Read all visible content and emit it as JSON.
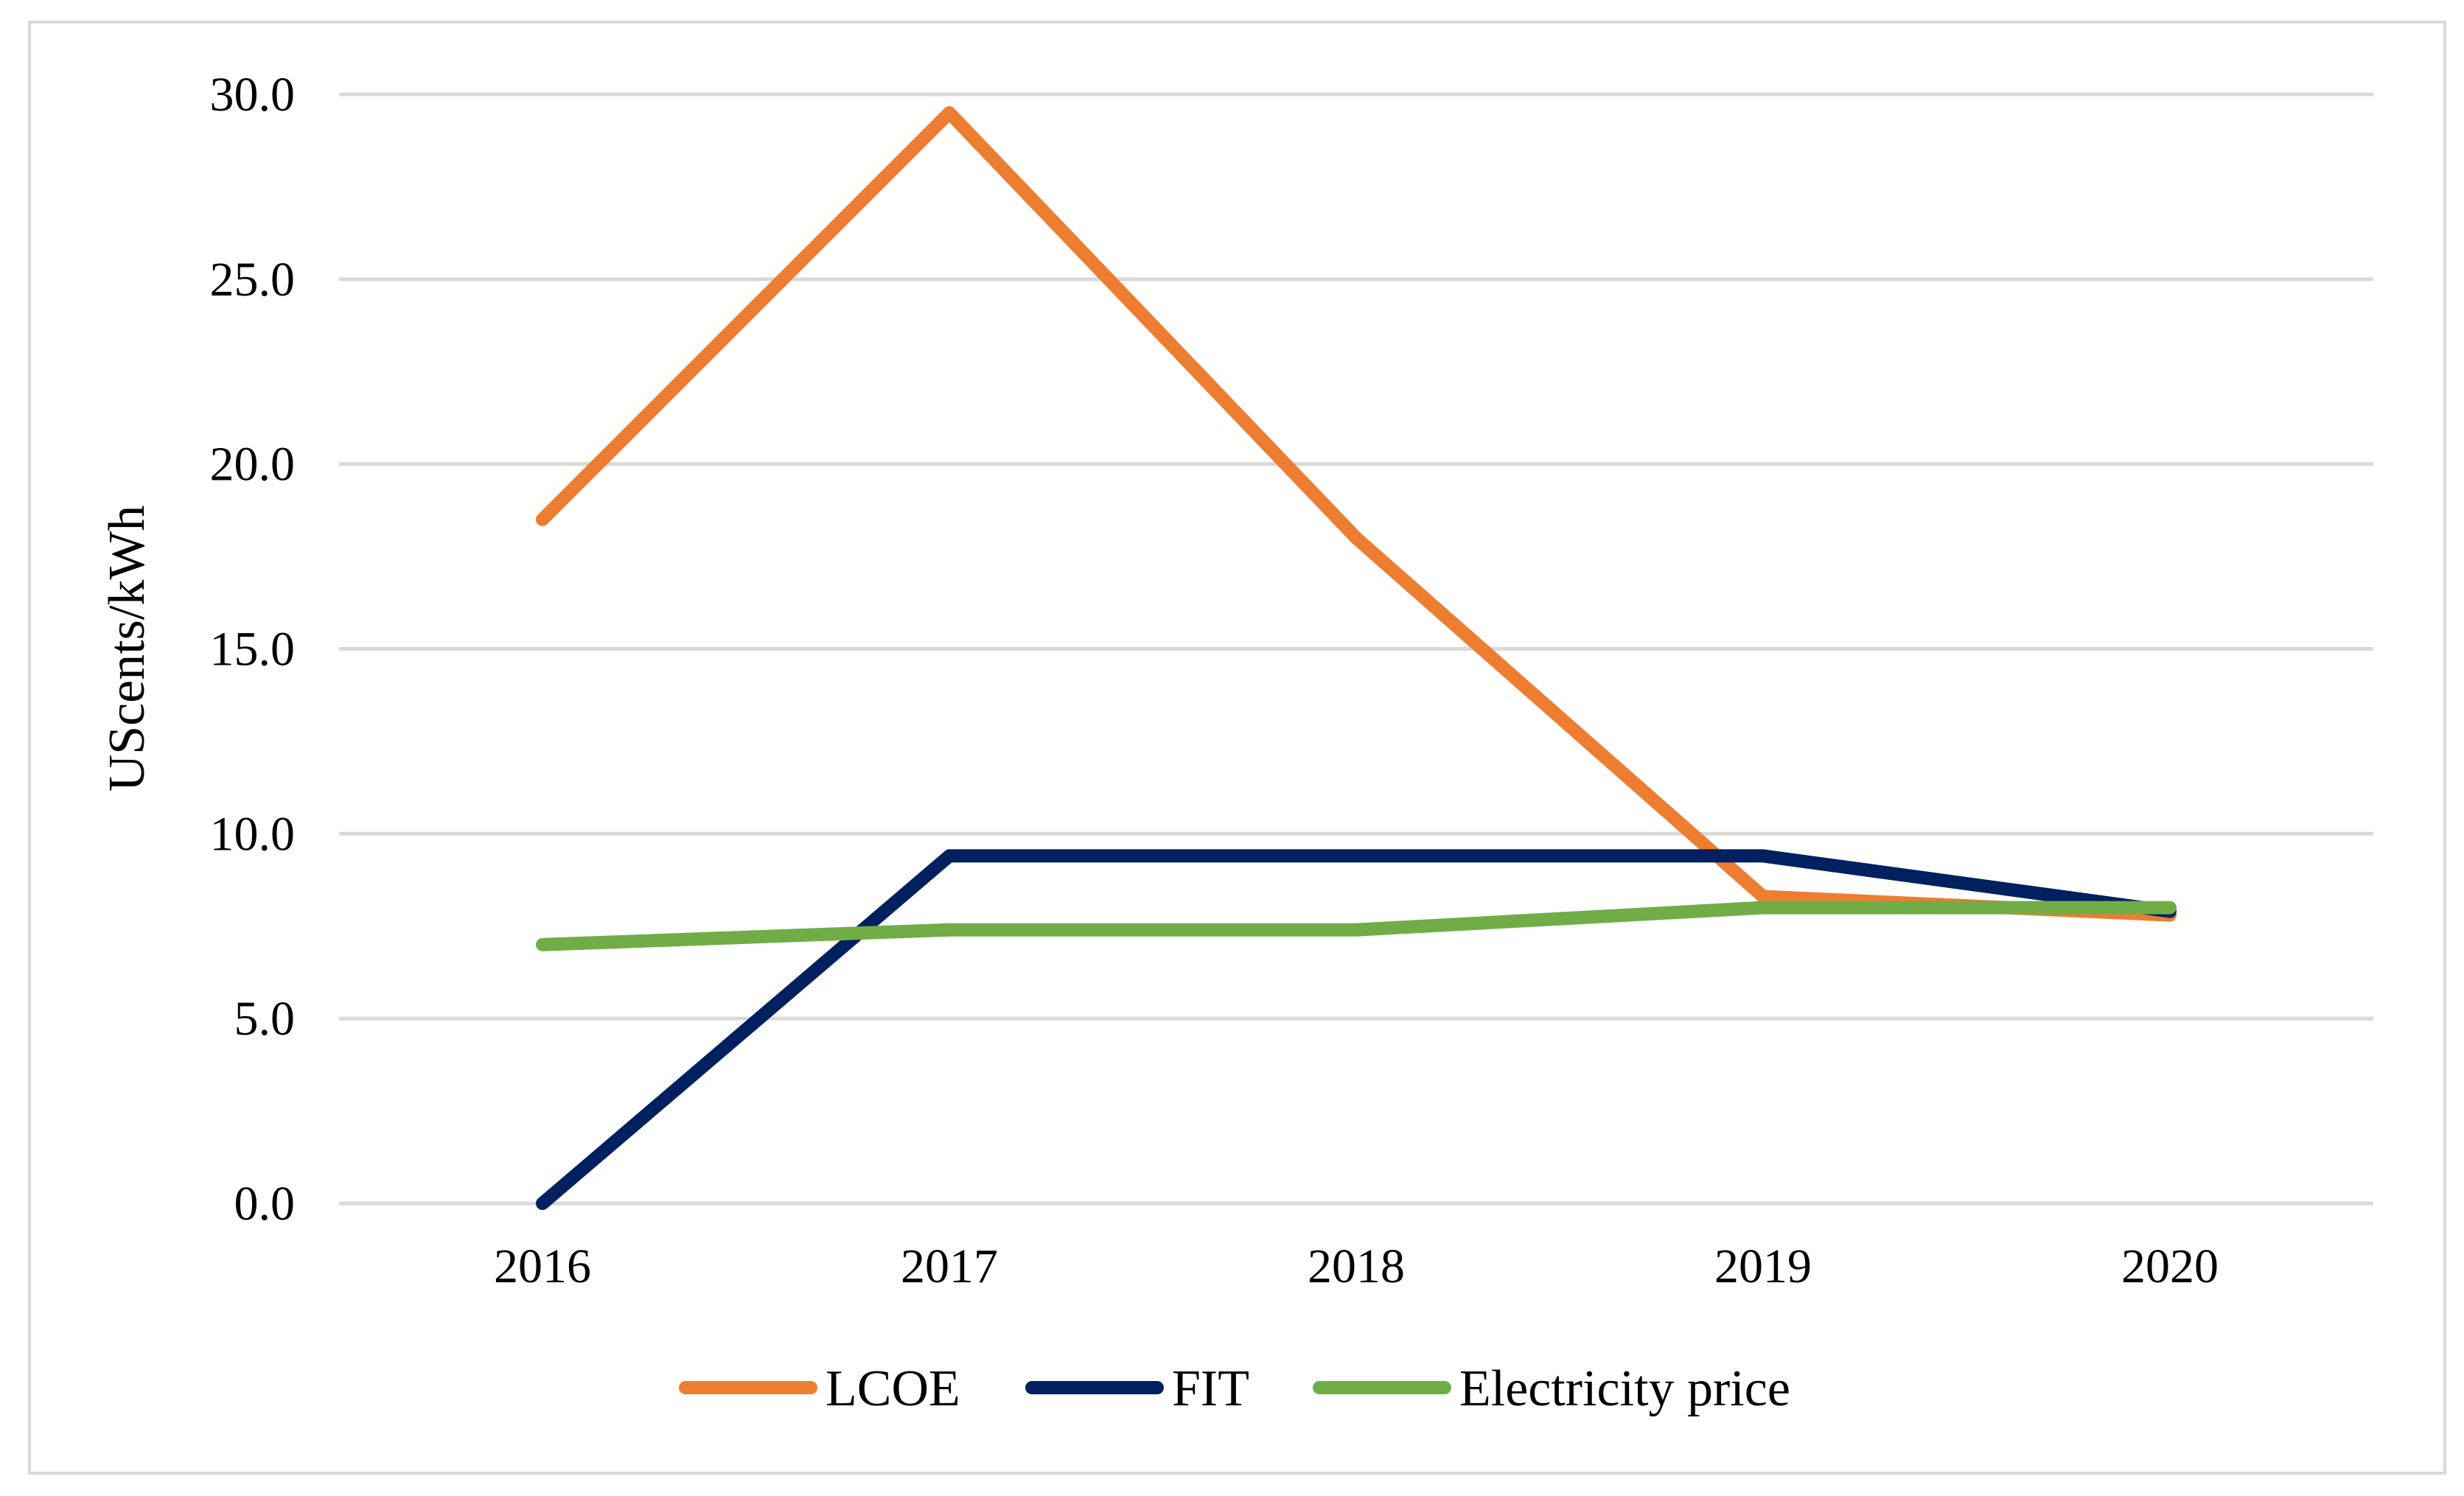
{
  "chart_data": {
    "type": "line",
    "title": "",
    "xlabel": "",
    "ylabel": "UScents/kWh",
    "categories": [
      "2016",
      "2017",
      "2018",
      "2019",
      "2020"
    ],
    "ylim": [
      0,
      30
    ],
    "yticks": [
      "0.0",
      "5.0",
      "10.0",
      "15.0",
      "20.0",
      "25.0",
      "30.0"
    ],
    "grid": true,
    "legend_position": "bottom",
    "series": [
      {
        "name": "LCOE",
        "color": "#ED7D31",
        "values": [
          18.5,
          29.5,
          18.0,
          8.3,
          7.8
        ]
      },
      {
        "name": "FIT",
        "color": "#002060",
        "values": [
          0.0,
          9.4,
          9.4,
          9.4,
          7.9
        ]
      },
      {
        "name": "Electricity price",
        "color": "#70AD47",
        "values": [
          7.0,
          7.4,
          7.4,
          8.0,
          8.0
        ]
      }
    ]
  }
}
